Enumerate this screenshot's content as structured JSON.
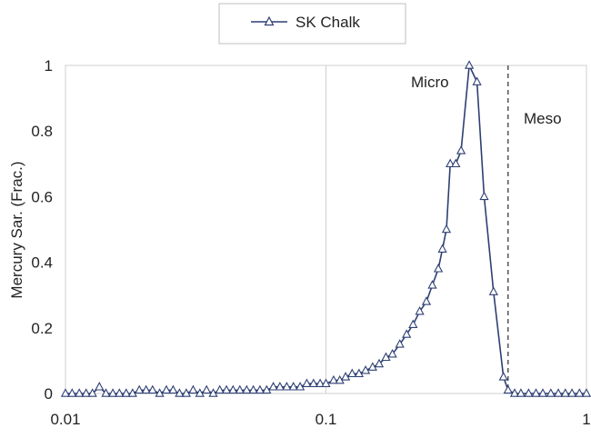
{
  "chart_data": {
    "type": "line",
    "title": "",
    "xlabel": "",
    "ylabel": "Mercury Sar. (Frac.)",
    "x_scale": "log",
    "xlim": [
      0.01,
      1
    ],
    "ylim": [
      0,
      1
    ],
    "x_ticks": [
      "0.01",
      "0.1",
      "1"
    ],
    "y_ticks": [
      "0",
      "0.2",
      "0.4",
      "0.6",
      "0.8",
      "1"
    ],
    "grid": "vertical lines at x ticks",
    "legend_position": "top-center",
    "series": [
      {
        "name": "SK Chalk",
        "color": "#2e3f73",
        "marker": "triangle-open",
        "x": [
          0.01,
          0.0106,
          0.0113,
          0.012,
          0.0127,
          0.0135,
          0.0143,
          0.0152,
          0.0161,
          0.0171,
          0.0181,
          0.0192,
          0.0204,
          0.0216,
          0.023,
          0.0244,
          0.0259,
          0.0274,
          0.0291,
          0.0309,
          0.0328,
          0.0348,
          0.0369,
          0.0391,
          0.0415,
          0.044,
          0.0467,
          0.0496,
          0.0526,
          0.0558,
          0.0592,
          0.0628,
          0.0666,
          0.0707,
          0.075,
          0.0796,
          0.0844,
          0.0896,
          0.095,
          0.1,
          0.107,
          0.113,
          0.119,
          0.126,
          0.134,
          0.142,
          0.151,
          0.16,
          0.17,
          0.18,
          0.192,
          0.204,
          0.216,
          0.229,
          0.243,
          0.256,
          0.27,
          0.28,
          0.29,
          0.3,
          0.315,
          0.33,
          0.355,
          0.38,
          0.405,
          0.44,
          0.48,
          0.5,
          0.53,
          0.56,
          0.6,
          0.64,
          0.68,
          0.73,
          0.78,
          0.83,
          0.88,
          0.94,
          1.0
        ],
        "y": [
          0.0,
          0.0,
          0.0,
          0.0,
          0.0,
          0.02,
          0.0,
          0.0,
          0.0,
          0.0,
          0.0,
          0.01,
          0.01,
          0.01,
          0.0,
          0.01,
          0.01,
          0.0,
          0.0,
          0.01,
          0.0,
          0.01,
          0.0,
          0.01,
          0.01,
          0.01,
          0.01,
          0.01,
          0.01,
          0.01,
          0.01,
          0.02,
          0.02,
          0.02,
          0.02,
          0.02,
          0.03,
          0.03,
          0.03,
          0.03,
          0.04,
          0.04,
          0.05,
          0.06,
          0.06,
          0.07,
          0.08,
          0.09,
          0.11,
          0.12,
          0.15,
          0.18,
          0.21,
          0.25,
          0.28,
          0.33,
          0.38,
          0.44,
          0.5,
          0.7,
          0.7,
          0.74,
          1.0,
          0.95,
          0.6,
          0.31,
          0.05,
          0.01,
          0.0,
          0.0,
          0.0,
          0.0,
          0.0,
          0.0,
          0.0,
          0.0,
          0.0,
          0.0,
          0.0
        ]
      }
    ],
    "annotations": [
      {
        "text": "Micro"
      },
      {
        "text": "Meso"
      }
    ],
    "reference_lines": [
      {
        "axis": "x",
        "value": 0.5,
        "style": "dashed"
      }
    ]
  }
}
